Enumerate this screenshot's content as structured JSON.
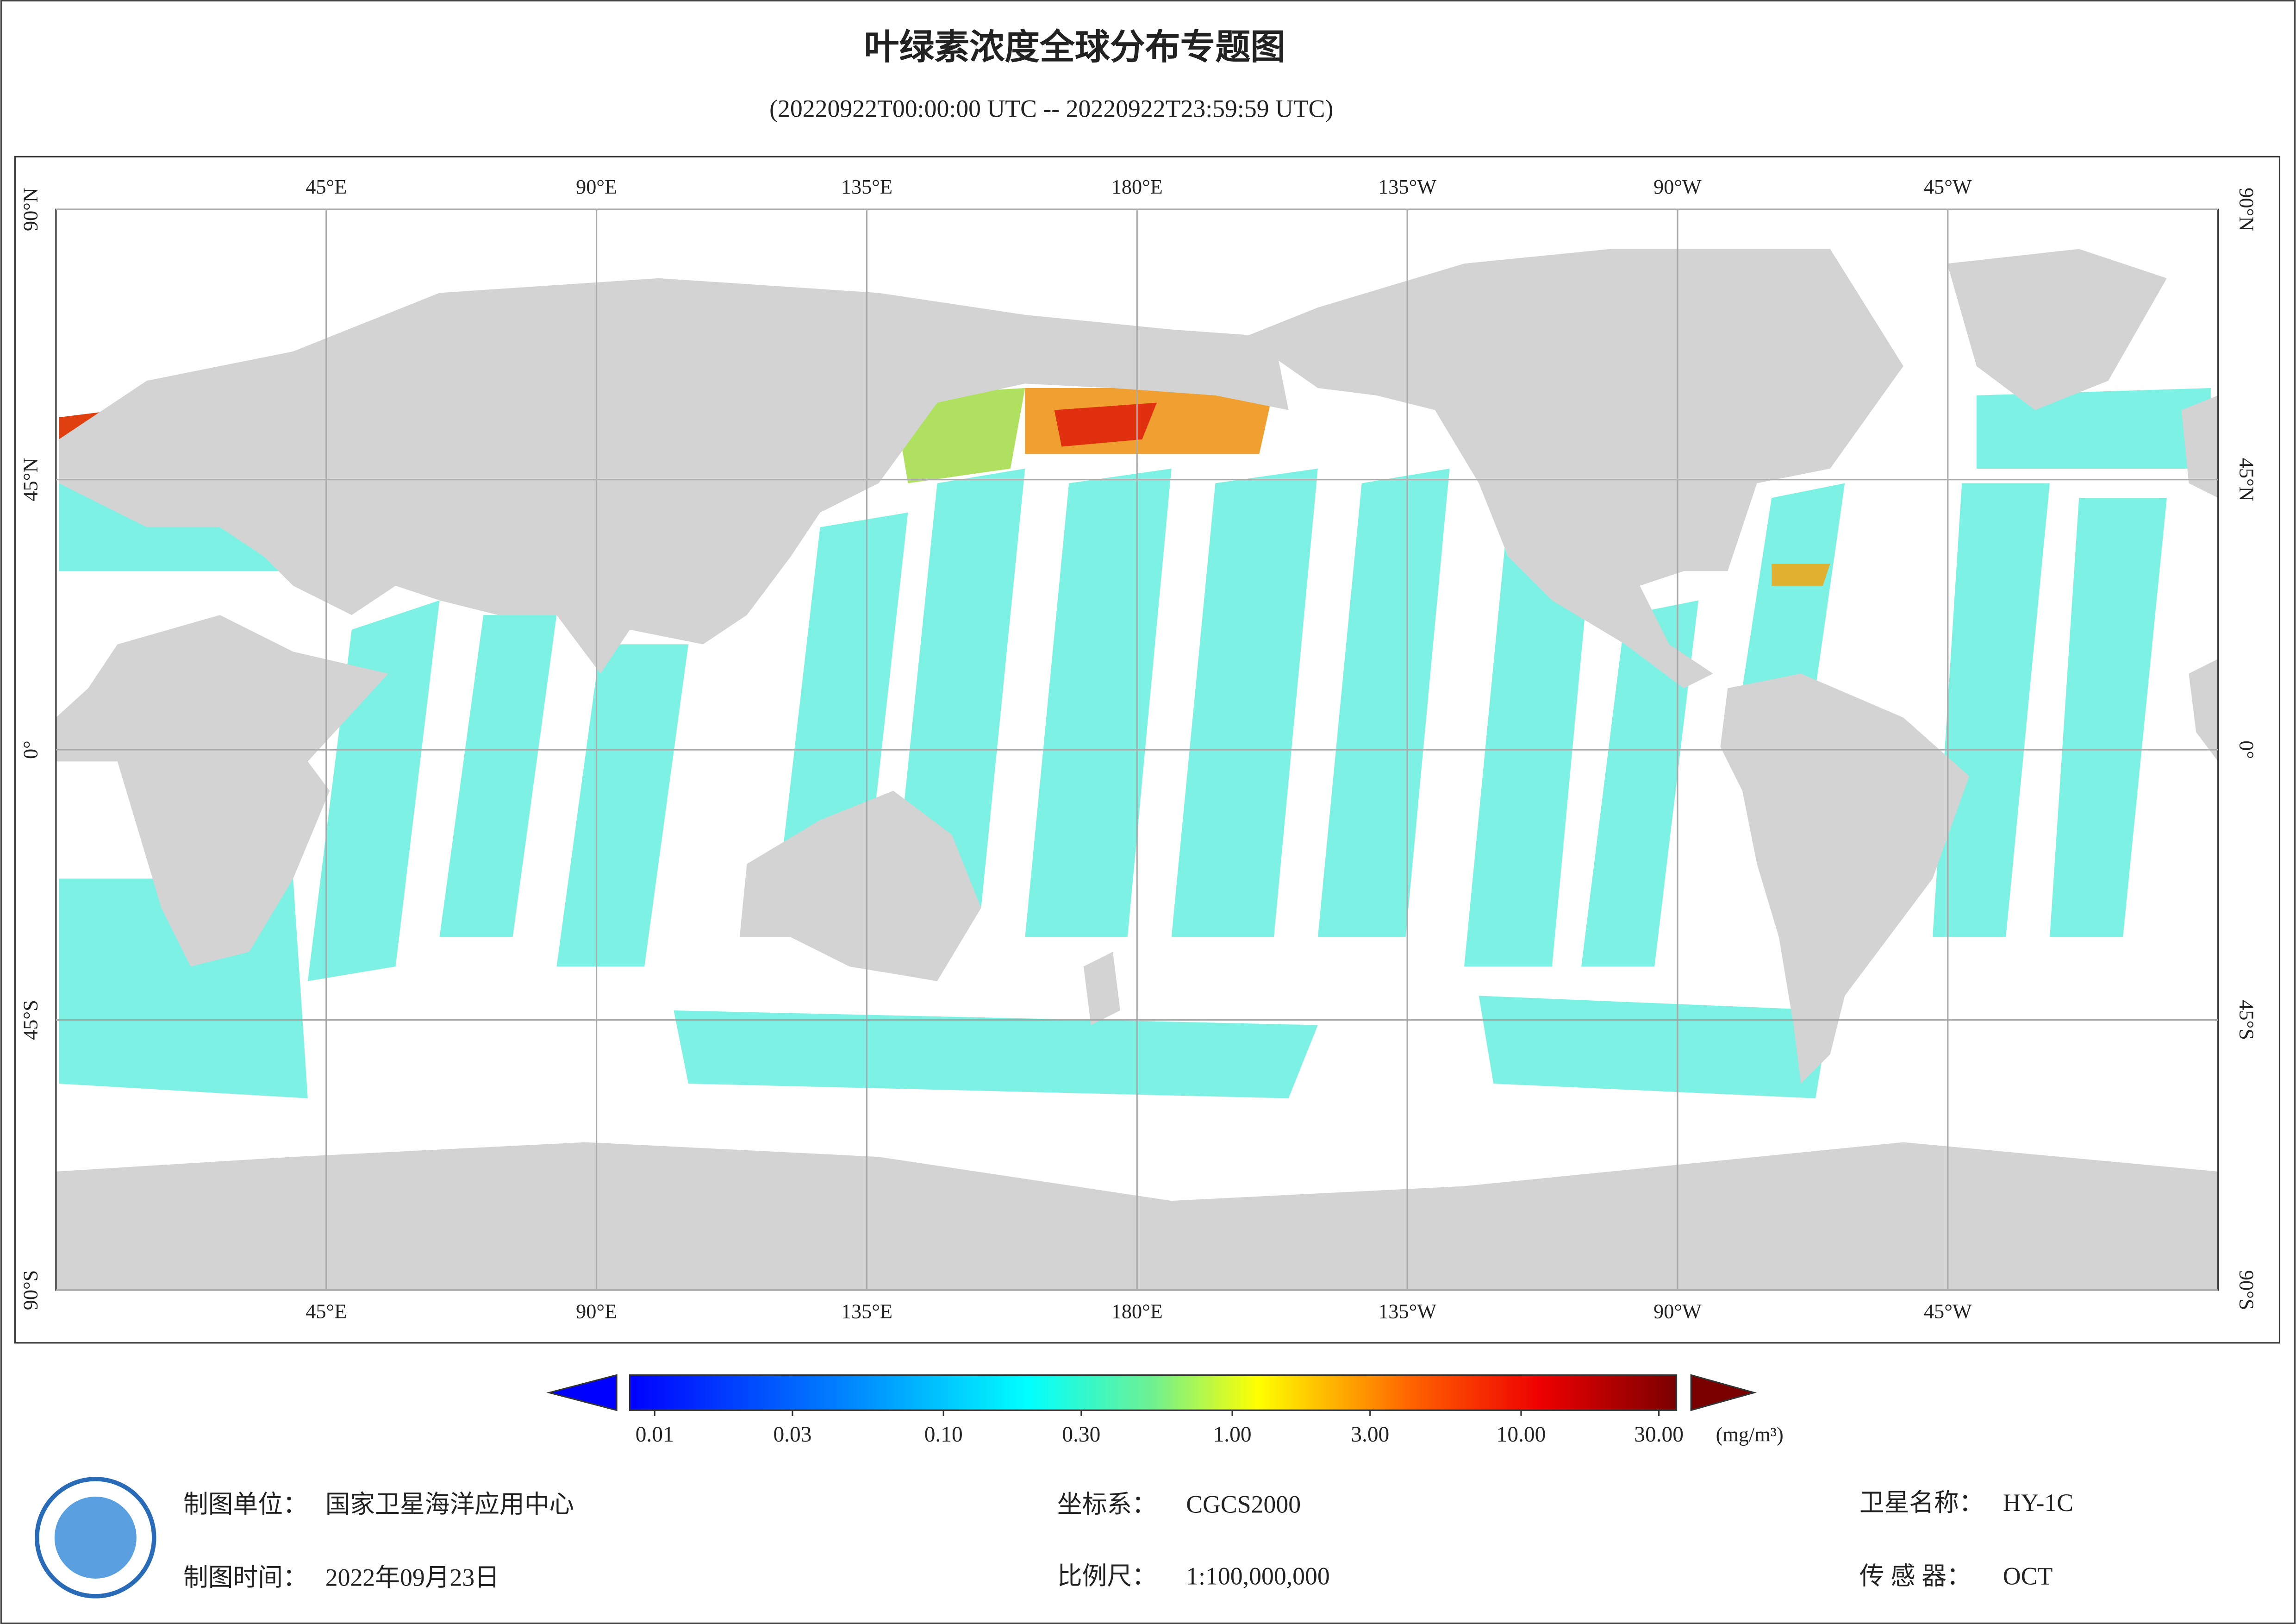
{
  "header": {
    "title": "叶绿素浓度全球分布专题图",
    "subtitle": "(20220922T00:00:00 UTC -- 20220922T23:59:59 UTC)"
  },
  "map": {
    "lon_range": [
      0,
      360
    ],
    "lat_range": [
      -90,
      90
    ],
    "lon_ticks": [
      {
        "value": 45,
        "label": "45°E"
      },
      {
        "value": 90,
        "label": "90°E"
      },
      {
        "value": 135,
        "label": "135°E"
      },
      {
        "value": 180,
        "label": "180°E"
      },
      {
        "value": 225,
        "label": "135°W"
      },
      {
        "value": 270,
        "label": "90°W"
      },
      {
        "value": 315,
        "label": "45°W"
      }
    ],
    "lat_ticks": [
      {
        "value": 90,
        "label": "90°N"
      },
      {
        "value": 45,
        "label": "45°N"
      },
      {
        "value": 0,
        "label": "0°"
      },
      {
        "value": -45,
        "label": "45°S"
      },
      {
        "value": -90,
        "label": "90°S"
      }
    ]
  },
  "colorbar": {
    "range": [
      0.01,
      30
    ],
    "log": true,
    "ticks": [
      {
        "value": 0.01,
        "label": "0.01"
      },
      {
        "value": 0.03,
        "label": "0.03"
      },
      {
        "value": 0.1,
        "label": "0.10"
      },
      {
        "value": 0.3,
        "label": "0.30"
      },
      {
        "value": 1,
        "label": "1.00"
      },
      {
        "value": 3,
        "label": "3.00"
      },
      {
        "value": 10,
        "label": "10.00"
      },
      {
        "value": 30,
        "label": "30.00"
      }
    ],
    "unit": "(mg/m³)"
  },
  "footer": {
    "unit_label": "制图单位：",
    "unit": "国家卫星海洋应用中心",
    "date_label": "制图时间：",
    "date": "2022年09月23日",
    "crs_label": "坐标系：",
    "crs": "CGCS2000",
    "scale_label": "比例尺：",
    "scale": "1:100,000,000",
    "satellite_label": "卫星名称：",
    "satellite": "HY-1C",
    "sensor_label": "传 感 器：",
    "sensor": "OCT"
  }
}
